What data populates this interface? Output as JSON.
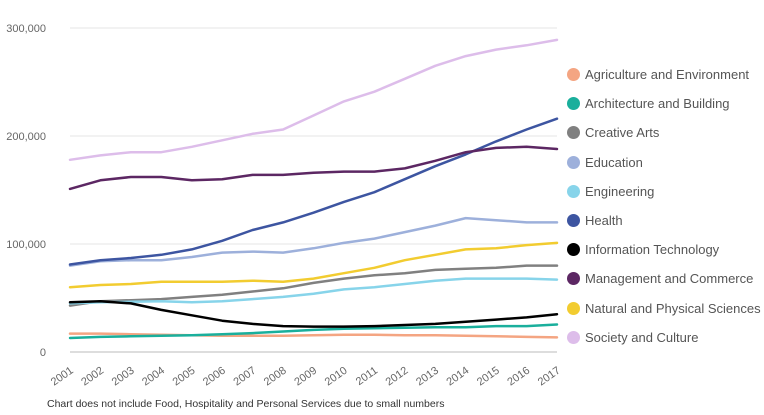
{
  "chart_data": {
    "type": "line",
    "x": [
      "2001",
      "2002",
      "2003",
      "2004",
      "2005",
      "2006",
      "2007",
      "2008",
      "2009",
      "2010",
      "2011",
      "2012",
      "2013",
      "2014",
      "2015",
      "2016",
      "2017"
    ],
    "ylim": [
      0,
      300000
    ],
    "yticks": [
      0,
      100000,
      200000,
      300000
    ],
    "ytick_labels": [
      "0",
      "100,000",
      "200,000",
      "300,000"
    ],
    "grid": true,
    "legend_position": "right",
    "series": [
      {
        "name": "Agriculture and Environment",
        "color": "#F4A582",
        "values": [
          17000,
          17000,
          16500,
          16000,
          15500,
          15000,
          15000,
          15000,
          15500,
          16000,
          16000,
          15500,
          15500,
          15000,
          14500,
          14000,
          13500
        ]
      },
      {
        "name": "Architecture and Building",
        "color": "#1AAF9C",
        "values": [
          13000,
          14000,
          14500,
          15000,
          15500,
          16500,
          17500,
          19000,
          20500,
          21500,
          22000,
          22500,
          23000,
          23000,
          24000,
          24000,
          25500
        ]
      },
      {
        "name": "Creative Arts",
        "color": "#808080",
        "values": [
          43000,
          47000,
          48000,
          49000,
          51000,
          53000,
          56000,
          59000,
          64000,
          68000,
          71000,
          73000,
          76000,
          77000,
          78000,
          80000,
          80000
        ]
      },
      {
        "name": "Education",
        "color": "#9DB0DB",
        "values": [
          80000,
          84000,
          85000,
          85000,
          88000,
          92000,
          93000,
          92000,
          96000,
          101000,
          105000,
          111000,
          117000,
          124000,
          122000,
          120000,
          120000
        ]
      },
      {
        "name": "Engineering",
        "color": "#87D4EA",
        "values": [
          45000,
          46000,
          46500,
          47000,
          46000,
          47000,
          49000,
          51000,
          54000,
          58000,
          60000,
          63000,
          66000,
          68000,
          68000,
          68000,
          67000
        ]
      },
      {
        "name": "Health",
        "color": "#3D55A1",
        "values": [
          81000,
          85000,
          87000,
          90000,
          95000,
          103000,
          113000,
          120000,
          129000,
          139000,
          148000,
          160000,
          172000,
          183000,
          195000,
          206000,
          216000
        ]
      },
      {
        "name": "Information Technology",
        "color": "#000000",
        "values": [
          46000,
          47000,
          45000,
          39000,
          34000,
          29000,
          26000,
          24000,
          23500,
          23500,
          24000,
          25000,
          26000,
          28000,
          30000,
          32000,
          35000
        ]
      },
      {
        "name": "Management and Commerce",
        "color": "#5C2763",
        "values": [
          151000,
          159000,
          162000,
          162000,
          159000,
          160000,
          164000,
          164000,
          166000,
          167000,
          167000,
          170000,
          177000,
          185000,
          189000,
          190000,
          188000
        ]
      },
      {
        "name": "Natural and Physical Sciences",
        "color": "#F2CC30",
        "values": [
          60000,
          62000,
          63000,
          65000,
          65000,
          65000,
          66000,
          65000,
          68000,
          73000,
          78000,
          85000,
          90000,
          95000,
          96000,
          99000,
          101000
        ]
      },
      {
        "name": "Society and Culture",
        "color": "#DDBDEA",
        "values": [
          178000,
          182000,
          185000,
          185000,
          190000,
          196000,
          202000,
          206000,
          219000,
          232000,
          241000,
          253000,
          265000,
          274000,
          280000,
          284000,
          289000
        ]
      }
    ]
  },
  "footnote": "Chart does not include Food, Hospitality and Personal Services due to small numbers"
}
